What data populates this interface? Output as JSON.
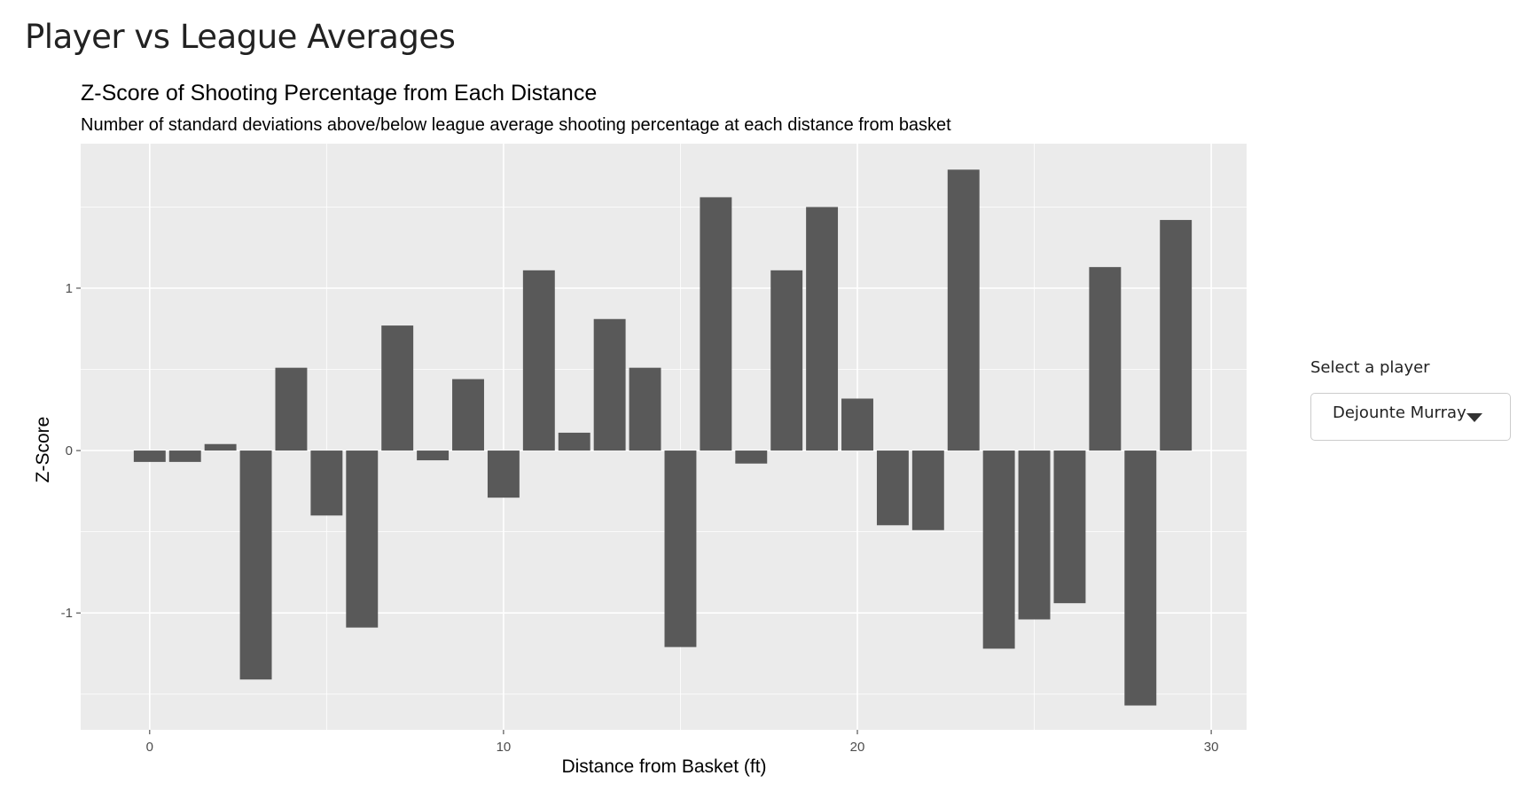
{
  "page": {
    "title": "Player vs League Averages"
  },
  "selector": {
    "label": "Select a player",
    "selected": "Dejounte Murray",
    "icon": "chevron-down-icon"
  },
  "chart_data": {
    "type": "bar",
    "title": "Z-Score of Shooting Percentage from Each Distance",
    "subtitle": "Number of standard deviations above/below league average shooting percentage at each distance from basket",
    "xlabel": "Distance from Basket (ft)",
    "ylabel": "Z-Score",
    "x": [
      0,
      1,
      2,
      3,
      4,
      5,
      6,
      7,
      8,
      9,
      10,
      11,
      12,
      13,
      14,
      15,
      16,
      17,
      18,
      19,
      20,
      21,
      22,
      23,
      24,
      25,
      26,
      27,
      28,
      29
    ],
    "values": [
      -0.07,
      -0.07,
      0.04,
      -1.41,
      0.51,
      -0.4,
      -1.09,
      0.77,
      -0.06,
      0.44,
      -0.29,
      1.11,
      0.11,
      0.81,
      0.51,
      -1.21,
      1.56,
      -0.08,
      1.11,
      1.5,
      0.32,
      -0.46,
      -0.49,
      1.73,
      -1.22,
      -1.04,
      -0.94,
      1.13,
      -1.57,
      1.42
    ],
    "xlim": [
      -1.95,
      31.0
    ],
    "ylim": [
      -1.72,
      1.89
    ],
    "xticks": [
      0,
      10,
      20,
      30
    ],
    "yticks": [
      -1,
      0,
      1
    ],
    "xtick_labels": [
      "0",
      "10",
      "20",
      "30"
    ],
    "ytick_labels": [
      "-1",
      "0",
      "1"
    ],
    "grid": true,
    "colors": {
      "bar": "#595959",
      "panel": "#ebebeb",
      "grid": "#ffffff"
    }
  }
}
